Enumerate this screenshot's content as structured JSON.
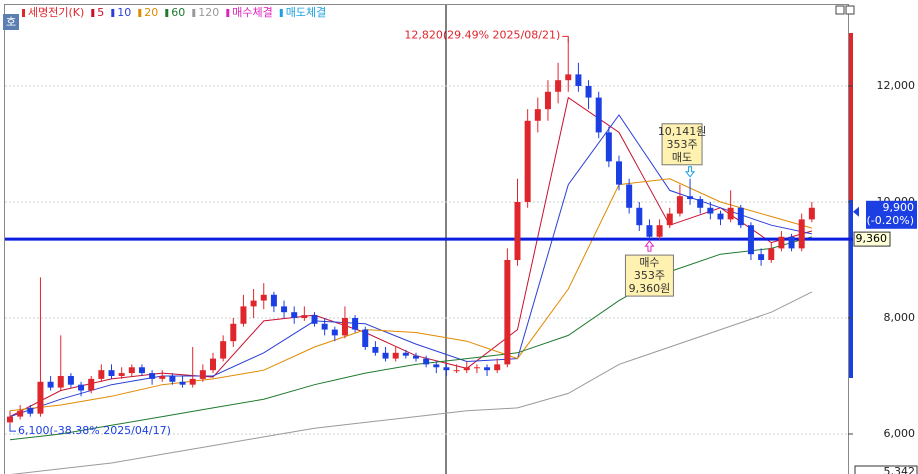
{
  "chart_data": {
    "type": "candlestick",
    "title": "세명전기(K)",
    "badge": "호",
    "color_up": "#e0262d",
    "color_down": "#1c3fe4",
    "candles": [
      [
        6200,
        6400,
        6100,
        6300
      ],
      [
        6300,
        6500,
        6250,
        6400
      ],
      [
        6450,
        6500,
        6300,
        6350
      ],
      [
        6350,
        8700,
        6300,
        6900
      ],
      [
        6900,
        7000,
        6750,
        6800
      ],
      [
        6800,
        7700,
        6750,
        7000
      ],
      [
        7000,
        7050,
        6800,
        6850
      ],
      [
        6850,
        6900,
        6650,
        6750
      ],
      [
        6750,
        7000,
        6700,
        6950
      ],
      [
        6950,
        7200,
        6900,
        7100
      ],
      [
        7100,
        7200,
        6950,
        7000
      ],
      [
        7000,
        7150,
        6950,
        7050
      ],
      [
        7050,
        7200,
        7000,
        7150
      ],
      [
        7150,
        7200,
        7000,
        7050
      ],
      [
        7050,
        7100,
        6850,
        6950
      ],
      [
        6950,
        7100,
        6900,
        7000
      ],
      [
        7000,
        7050,
        6850,
        6900
      ],
      [
        6900,
        7000,
        6800,
        6850
      ],
      [
        6850,
        7500,
        6800,
        6950
      ],
      [
        6950,
        7200,
        6900,
        7100
      ],
      [
        7100,
        7400,
        7050,
        7300
      ],
      [
        7300,
        7700,
        7250,
        7600
      ],
      [
        7600,
        8000,
        7500,
        7900
      ],
      [
        7900,
        8400,
        7850,
        8200
      ],
      [
        8200,
        8500,
        8000,
        8300
      ],
      [
        8300,
        8600,
        8150,
        8400
      ],
      [
        8400,
        8450,
        8100,
        8200
      ],
      [
        8200,
        8300,
        8000,
        8100
      ],
      [
        8100,
        8200,
        7900,
        8000
      ],
      [
        8000,
        8200,
        7950,
        8050
      ],
      [
        8050,
        8100,
        7850,
        7900
      ],
      [
        7900,
        8000,
        7700,
        7800
      ],
      [
        7800,
        7850,
        7600,
        7700
      ],
      [
        7700,
        8200,
        7650,
        8000
      ],
      [
        8000,
        8050,
        7750,
        7800
      ],
      [
        7800,
        7850,
        7450,
        7500
      ],
      [
        7500,
        7600,
        7350,
        7400
      ],
      [
        7400,
        7500,
        7250,
        7300
      ],
      [
        7300,
        7500,
        7250,
        7400
      ],
      [
        7400,
        7450,
        7300,
        7350
      ],
      [
        7350,
        7400,
        7250,
        7300
      ],
      [
        7300,
        7350,
        7150,
        7200
      ],
      [
        7200,
        7250,
        7050,
        7150
      ],
      [
        7150,
        7200,
        7000,
        7100
      ],
      [
        7100,
        7200,
        7050,
        7100
      ],
      [
        7100,
        7250,
        7050,
        7150
      ],
      [
        7150,
        7200,
        7050,
        7150
      ],
      [
        7150,
        7200,
        7000,
        7100
      ],
      [
        7100,
        7300,
        7050,
        7200
      ],
      [
        7200,
        9200,
        7150,
        9000
      ],
      [
        9000,
        10400,
        8900,
        10000
      ],
      [
        10000,
        11600,
        9900,
        11400
      ],
      [
        11400,
        11800,
        11200,
        11600
      ],
      [
        11600,
        12100,
        11400,
        11900
      ],
      [
        11900,
        12400,
        11700,
        12100
      ],
      [
        12100,
        12820,
        11900,
        12200
      ],
      [
        12200,
        12400,
        11900,
        12000
      ],
      [
        12000,
        12100,
        11600,
        11800
      ],
      [
        11800,
        11900,
        11100,
        11200
      ],
      [
        11200,
        11300,
        10600,
        10700
      ],
      [
        10700,
        10800,
        10200,
        10300
      ],
      [
        10300,
        10400,
        9800,
        9900
      ],
      [
        9900,
        10000,
        9500,
        9600
      ],
      [
        9600,
        9700,
        9360,
        9400
      ],
      [
        9400,
        9700,
        9350,
        9600
      ],
      [
        9600,
        9900,
        9550,
        9800
      ],
      [
        9800,
        10300,
        9750,
        10100
      ],
      [
        10100,
        10400,
        9950,
        10050
      ],
      [
        10050,
        10100,
        9800,
        9900
      ],
      [
        9900,
        10000,
        9700,
        9800
      ],
      [
        9800,
        9850,
        9600,
        9700
      ],
      [
        9700,
        10200,
        9650,
        9900
      ],
      [
        9900,
        9950,
        9550,
        9600
      ],
      [
        9600,
        9650,
        9000,
        9100
      ],
      [
        9100,
        9200,
        8900,
        9000
      ],
      [
        9000,
        9300,
        8950,
        9200
      ],
      [
        9200,
        9500,
        9150,
        9400
      ],
      [
        9400,
        9450,
        9150,
        9200
      ],
      [
        9200,
        9800,
        9150,
        9700
      ],
      [
        9700,
        10000,
        9650,
        9900
      ]
    ],
    "moving_averages": [
      {
        "name": "5",
        "color": "#c8102e",
        "x": [
          0,
          5,
          10,
          15,
          20,
          25,
          30,
          35,
          40,
          45,
          50,
          55,
          60,
          65,
          70,
          75,
          79
        ],
        "values": [
          6300,
          6750,
          6950,
          7050,
          6980,
          7950,
          8050,
          7750,
          7350,
          7130,
          7800,
          11800,
          11200,
          9600,
          9900,
          9300,
          9500
        ]
      },
      {
        "name": "10",
        "color": "#2b3fd6",
        "x": [
          0,
          5,
          10,
          15,
          20,
          25,
          30,
          35,
          40,
          45,
          50,
          55,
          60,
          65,
          70,
          75,
          79
        ],
        "values": [
          6300,
          6600,
          6850,
          7000,
          7000,
          7400,
          7950,
          7900,
          7550,
          7250,
          7300,
          10300,
          11500,
          10200,
          9900,
          9600,
          9450
        ]
      },
      {
        "name": "20",
        "color": "#e08a00",
        "x": [
          0,
          5,
          10,
          15,
          20,
          25,
          30,
          35,
          40,
          45,
          50,
          55,
          60,
          65,
          70,
          75,
          79
        ],
        "values": [
          6400,
          6500,
          6650,
          6850,
          6950,
          7100,
          7500,
          7800,
          7750,
          7600,
          7300,
          8500,
          10300,
          10400,
          10000,
          9750,
          9550
        ]
      },
      {
        "name": "60",
        "color": "#1f7a2e",
        "x": [
          0,
          5,
          10,
          15,
          20,
          25,
          30,
          35,
          40,
          45,
          50,
          55,
          60,
          65,
          70,
          75,
          79
        ],
        "values": [
          5900,
          6000,
          6150,
          6300,
          6450,
          6600,
          6850,
          7050,
          7200,
          7300,
          7400,
          7700,
          8300,
          8800,
          9100,
          9200,
          9400
        ]
      },
      {
        "name": "120",
        "color": "#9a9a9a",
        "x": [
          0,
          5,
          10,
          15,
          20,
          25,
          30,
          35,
          40,
          45,
          50,
          55,
          60,
          65,
          70,
          75,
          79
        ],
        "values": [
          5300,
          5400,
          5500,
          5650,
          5800,
          5950,
          6100,
          6200,
          6300,
          6400,
          6450,
          6700,
          7200,
          7500,
          7800,
          8100,
          8450
        ]
      }
    ],
    "legend_extra": [
      {
        "name": "매수체결",
        "color": "#e020c0"
      },
      {
        "name": "매도체결",
        "color": "#1aa0e0"
      }
    ],
    "ylim": [
      5310,
      13310
    ],
    "yticks": [
      {
        "value": 6000,
        "label": "6,000"
      },
      {
        "value": 8000,
        "label": "8,000"
      },
      {
        "value": 10000,
        "label": "10,000"
      },
      {
        "value": 12000,
        "label": "12,000"
      }
    ],
    "grid": true,
    "price_line": {
      "value": 9360,
      "label": "9,360"
    },
    "current": {
      "value": 9900,
      "label": "9,900",
      "change": "(-0.20%)"
    },
    "max_annotation": "12,820(29.49% 2025/08/21)",
    "min_annotation": "6,100(-38.38% 2025/04/17)",
    "buy": [
      "매수",
      "353주",
      "9,360원"
    ],
    "sell": [
      "10,141원",
      "353주",
      "매도"
    ],
    "bottom_label": "5,342"
  }
}
